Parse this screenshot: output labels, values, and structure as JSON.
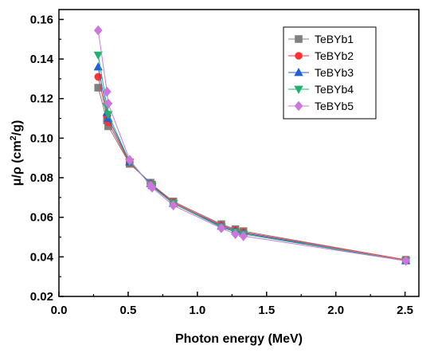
{
  "chart_data": {
    "type": "line",
    "title": "",
    "xlabel": "Photon energy (MeV)",
    "ylabel_main": "μ/ρ (cm",
    "ylabel_sup": "2",
    "ylabel_end": "/g)",
    "xlim": [
      0.0,
      2.6
    ],
    "ylim": [
      0.02,
      0.165
    ],
    "x_ticks": [
      0.0,
      0.5,
      1.0,
      1.5,
      2.0,
      2.5
    ],
    "x_tick_labels": [
      "0.0",
      "0.5",
      "1.0",
      "1.5",
      "2.0",
      "2.5"
    ],
    "y_ticks": [
      0.02,
      0.04,
      0.06,
      0.08,
      0.1,
      0.12,
      0.14,
      0.16
    ],
    "y_tick_labels": [
      "0.02",
      "0.04",
      "0.06",
      "0.08",
      "0.10",
      "0.12",
      "0.14",
      "0.16"
    ],
    "grid": false,
    "legend_position": "top-right",
    "x": [
      0.2835,
      0.3471,
      0.356,
      0.511,
      0.6617,
      0.6729,
      0.8261,
      1.1732,
      1.2745,
      1.3325,
      2.5057
    ],
    "series": [
      {
        "name": "TeBYb1",
        "color": "#808080",
        "marker": "square",
        "values": [
          0.1255,
          0.109,
          0.106,
          0.087,
          0.0775,
          0.0765,
          0.068,
          0.0565,
          0.054,
          0.053,
          0.0385
        ]
      },
      {
        "name": "TeBYb2",
        "color": "#ff3333",
        "marker": "circle",
        "values": [
          0.131,
          0.111,
          0.108,
          0.0875,
          0.077,
          0.0765,
          0.0675,
          0.056,
          0.0535,
          0.0525,
          0.0385
        ]
      },
      {
        "name": "TeBYb3",
        "color": "#1f5fd8",
        "marker": "triangle-up",
        "values": [
          0.136,
          0.113,
          0.11,
          0.088,
          0.077,
          0.076,
          0.067,
          0.0555,
          0.053,
          0.052,
          0.038
        ]
      },
      {
        "name": "TeBYb4",
        "color": "#20b070",
        "marker": "triangle-down",
        "values": [
          0.142,
          0.116,
          0.112,
          0.088,
          0.0765,
          0.0755,
          0.067,
          0.055,
          0.0525,
          0.0515,
          0.038
        ]
      },
      {
        "name": "TeBYb5",
        "color": "#cc77dd",
        "marker": "diamond",
        "values": [
          0.1545,
          0.1235,
          0.1175,
          0.089,
          0.076,
          0.075,
          0.066,
          0.0545,
          0.0515,
          0.0505,
          0.038
        ]
      }
    ]
  }
}
